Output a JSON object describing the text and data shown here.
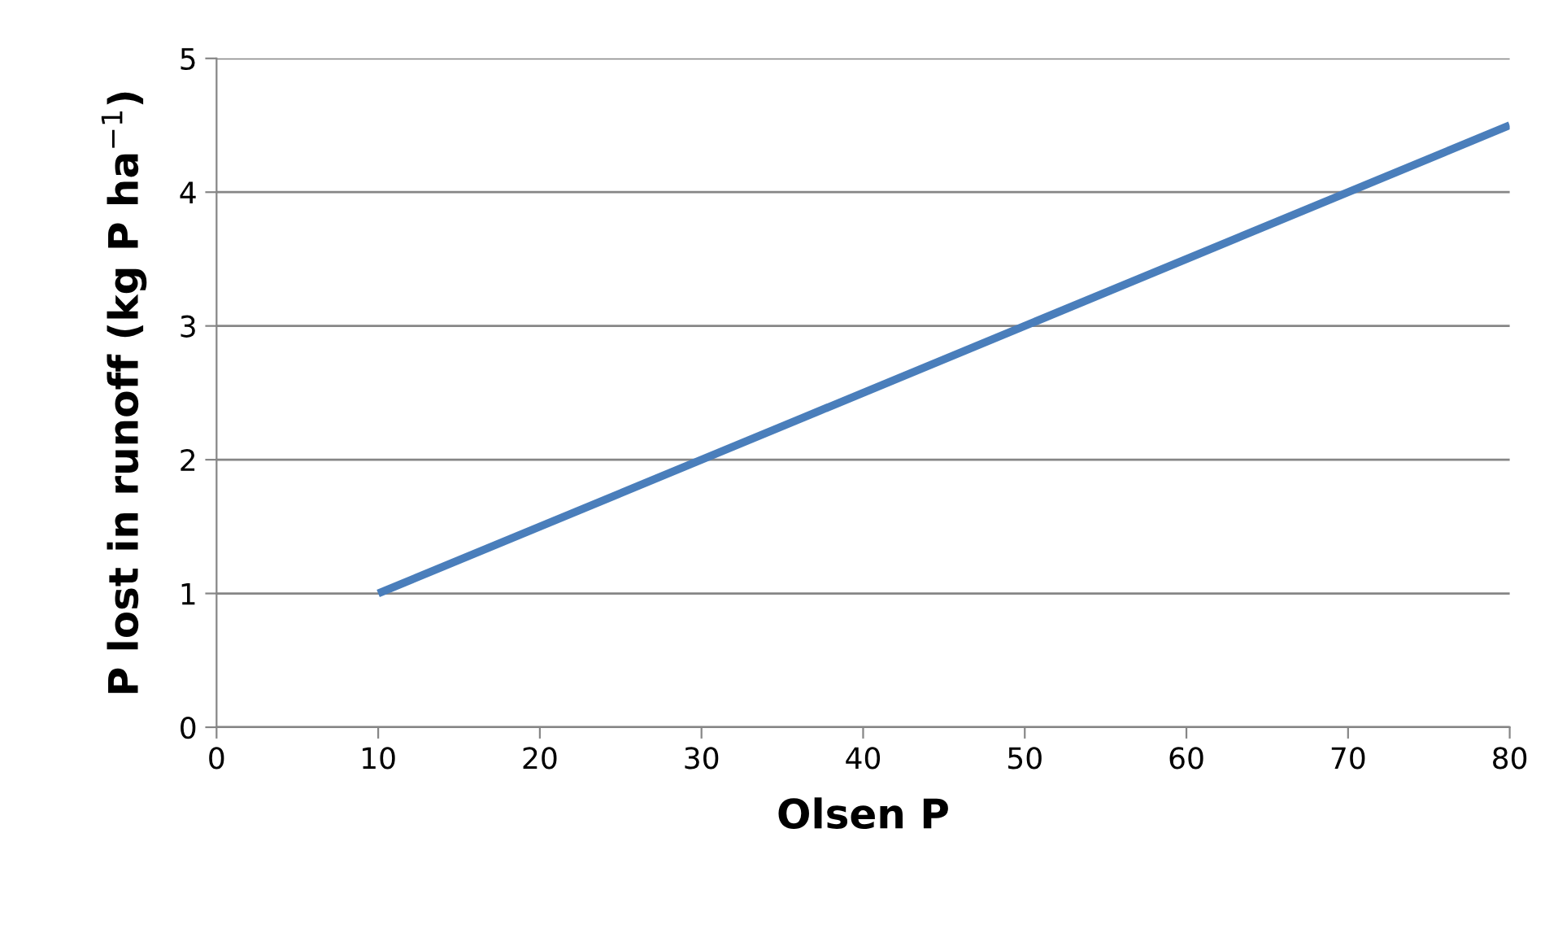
{
  "chart_data": {
    "type": "line",
    "xlabel": "Olsen P",
    "ylabel": "P lost in runoff (kg P ha$^{−1}$)",
    "x": [
      10,
      80
    ],
    "series": [
      {
        "color": "#4a7ebb",
        "values": [
          1,
          4.5
        ]
      }
    ],
    "xlim": [
      0,
      80
    ],
    "xticks": [
      0,
      10,
      20,
      30,
      40,
      50,
      60,
      70,
      80
    ],
    "ylim": [
      0,
      5
    ],
    "yticks": [
      0,
      1,
      2,
      3,
      4,
      5
    ],
    "grid": "y",
    "marker": "none",
    "line_style": "solid",
    "legend": false
  }
}
